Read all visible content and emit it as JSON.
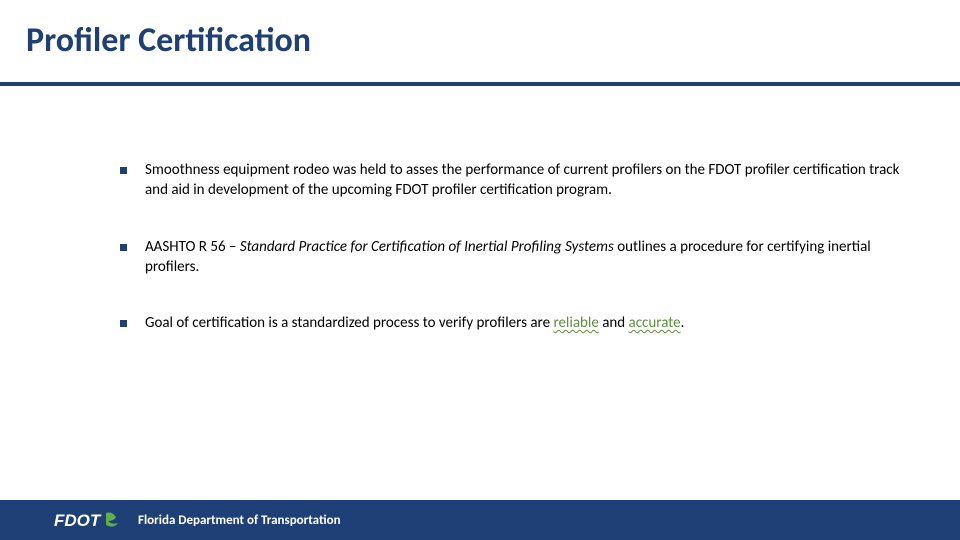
{
  "slide": {
    "title": "Profiler Certification",
    "title_color": "#1f3f77",
    "title_fontsize": 34,
    "underline_color": "#1f3f77",
    "bullet_marker_color": "#1f3f77",
    "body_color": "#000000",
    "body_fontsize": 15,
    "bullets": [
      {
        "segments": [
          {
            "text": "Smoothness equipment rodeo was held to asses the performance of current profilers on the FDOT profiler certification track and aid in development of the upcoming FDOT profiler certification program."
          }
        ]
      },
      {
        "segments": [
          {
            "text": "AASHTO R 56 – "
          },
          {
            "text": "Standard Practice for Certification of Inertial Profiling Systems ",
            "italic": true
          },
          {
            "text": "outlines a procedure for certifying inertial profilers."
          }
        ]
      },
      {
        "segments": [
          {
            "text": "Goal of certification is a standardized process to verify profilers are "
          },
          {
            "text": "reliable",
            "underline": true,
            "color": "#5b8f3f"
          },
          {
            "text": " and "
          },
          {
            "text": "accurate",
            "underline": true,
            "color": "#5b8f3f"
          },
          {
            "text": "."
          }
        ]
      }
    ]
  },
  "footer": {
    "background_color": "#1f3f77",
    "text_color": "#ffffff",
    "text": "Florida Department of Transportation",
    "text_fontsize": 13,
    "logo_text": "FDOT",
    "logo_color": "#ffffff",
    "logo_accent_color": "#5fb04a"
  }
}
